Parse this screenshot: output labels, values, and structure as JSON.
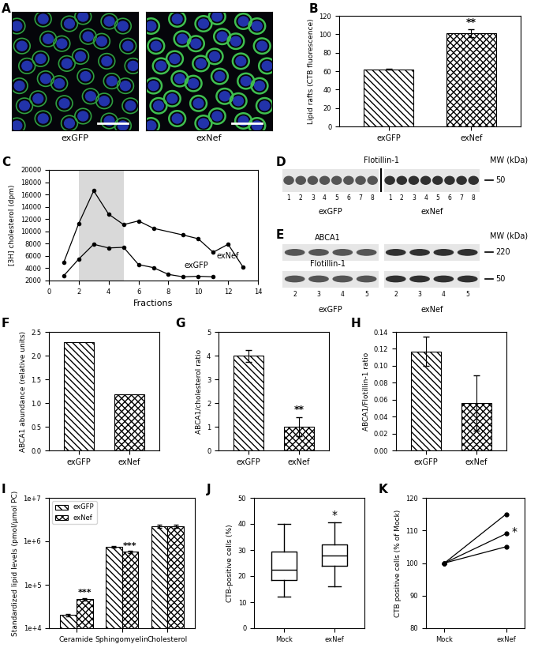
{
  "chart_data": [
    {
      "type": "image",
      "title": "A",
      "groups": [
        "exGFP",
        "exNef"
      ]
    },
    {
      "type": "bar",
      "title": "B",
      "categories": [
        "exGFP",
        "exNef"
      ],
      "values": [
        62,
        101
      ],
      "errors": [
        0.5,
        4
      ],
      "colors": [
        "#ffffff",
        "#ffffff"
      ],
      "ylabel": "Lipid rafts (CTB fluorescence)",
      "ylim": [
        0,
        120
      ],
      "yticks": [
        0,
        20,
        40,
        60,
        80,
        100,
        120
      ],
      "annotations": [
        {
          "text": "**",
          "x": "exNef"
        }
      ]
    },
    {
      "type": "line",
      "title": "C",
      "xlabel": "Fractions",
      "ylabel": "[3H] cholesterol (dpm)",
      "xlim": [
        0,
        14
      ],
      "xticks": [
        0,
        2,
        4,
        6,
        8,
        10,
        12,
        14
      ],
      "ylim": [
        2000,
        20000
      ],
      "yticks": [
        2000,
        4000,
        6000,
        8000,
        10000,
        12000,
        14000,
        16000,
        18000,
        20000
      ],
      "highlight": [
        2,
        5
      ],
      "marker": "o",
      "series": [
        {
          "name": "exNef",
          "color": "#000000",
          "x": [
            1,
            2,
            3,
            4,
            5,
            6,
            7,
            9,
            10,
            11,
            12,
            13
          ],
          "values": [
            5000,
            11300,
            16600,
            12800,
            11100,
            11700,
            10500,
            9400,
            8800,
            6600,
            7900,
            4200
          ]
        },
        {
          "name": "exGFP",
          "color": "#000000",
          "x": [
            1,
            2,
            3,
            4,
            5,
            6,
            7,
            8,
            9,
            10,
            11
          ],
          "values": [
            2800,
            5500,
            7900,
            7300,
            7400,
            4600,
            4100,
            3000,
            2600,
            2700,
            2600
          ]
        }
      ]
    },
    {
      "type": "blot",
      "title": "D",
      "bands": [
        "Flotillin-1"
      ],
      "header": "MW (kDa)",
      "mw": [
        50
      ],
      "lanes": [
        1,
        2,
        3,
        4,
        5,
        6,
        7,
        8
      ],
      "groups": [
        "exGFP",
        "exNef"
      ]
    },
    {
      "type": "blot",
      "title": "E",
      "bands": [
        "ABCA1",
        "Flotillin-1"
      ],
      "header": "MW (kDa)",
      "mw": [
        220,
        50
      ],
      "lanes": [
        2,
        3,
        4,
        5
      ],
      "groups": [
        "exGFP",
        "exNef"
      ]
    },
    {
      "type": "bar",
      "title": "F",
      "categories": [
        "exGFP",
        "exNef"
      ],
      "values": [
        2.28,
        1.18
      ],
      "errors": [
        0,
        0
      ],
      "colors": [
        "#ffffff",
        "#ffffff"
      ],
      "ylabel": "ABCA1 abundance (relative units)",
      "ylim": [
        0,
        2.5
      ],
      "yticks": [
        0.0,
        0.5,
        1.0,
        1.5,
        2.0,
        2.5
      ],
      "annotations": []
    },
    {
      "type": "bar",
      "title": "G",
      "categories": [
        "exGFP",
        "exNef"
      ],
      "values": [
        4.0,
        1.0
      ],
      "errors": [
        0.25,
        0.4
      ],
      "colors": [
        "#ffffff",
        "#ffffff"
      ],
      "ylabel": "ABCA1/cholesterol ratio",
      "ylim": [
        0,
        5
      ],
      "yticks": [
        0,
        1,
        2,
        3,
        4,
        5
      ],
      "annotations": [
        {
          "text": "**",
          "x": "exNef"
        }
      ]
    },
    {
      "type": "bar",
      "title": "H",
      "categories": [
        "exGFP",
        "exNef"
      ],
      "values": [
        0.117,
        0.056
      ],
      "errors": [
        0.017,
        0.033
      ],
      "colors": [
        "#ffffff",
        "#ffffff"
      ],
      "ylabel": "ABCA1/Flotillin-1 ratio",
      "ylim": [
        0,
        0.14
      ],
      "yticks": [
        {
          "value": 0,
          "label": "0.00"
        },
        {
          "value": 0.02,
          "label": "0.02"
        },
        {
          "value": 0.04,
          "label": "0.04"
        },
        {
          "value": 0.06,
          "label": "0.06"
        },
        {
          "value": 0.08,
          "label": "0.08"
        },
        {
          "value": 0.1,
          "label": "0.10"
        },
        {
          "value": 0.12,
          "label": "0.12"
        },
        {
          "value": 0.14,
          "label": "0.14"
        }
      ],
      "annotations": []
    },
    {
      "type": "bar",
      "title": "I",
      "log": "y",
      "legend": "upper left",
      "categories": [
        "Ceramide",
        "Sphingomyelin",
        "Cholesterol"
      ],
      "ylabel": "Standardized lipid levels (pmol/µmol PC)",
      "ylim": [
        10000,
        10000000
      ],
      "yticks": [
        {
          "value": 10000,
          "label": "1e+4"
        },
        {
          "value": 100000,
          "label": "1e+5"
        },
        {
          "value": 1000000,
          "label": "1e+6"
        },
        {
          "value": 10000000,
          "label": "1e+7"
        }
      ],
      "series": [
        {
          "name": "exGFP",
          "color": "#ffffff",
          "values": [
            20000,
            750000,
            2200000
          ],
          "errors": [
            1500,
            20000,
            200000
          ]
        },
        {
          "name": "exNef",
          "color": "#ffffff",
          "values": [
            47000,
            570000,
            2200000
          ],
          "errors": [
            3000,
            30000,
            200000
          ]
        }
      ],
      "annotations": [
        {
          "text": "***",
          "x": "Ceramide",
          "series": "exNef"
        },
        {
          "text": "***",
          "x": "Sphingomyelin",
          "series": "exNef"
        }
      ]
    },
    {
      "type": "box",
      "title": "J",
      "categories": [
        "Mock",
        "exNef"
      ],
      "ylabel": "CTB-positive cells (%)",
      "ylim": [
        0,
        50
      ],
      "yticks": [
        0,
        10,
        20,
        30,
        40,
        50
      ],
      "boxes": [
        {
          "whislo": 12,
          "q1": 18.5,
          "med": 22.5,
          "q3": 29.5,
          "whishi": 40
        },
        {
          "whislo": 16,
          "q1": 24,
          "med": 28,
          "q3": 32,
          "whishi": 40.5
        }
      ],
      "annotations": [
        {
          "text": "*",
          "x": "exNef"
        }
      ]
    },
    {
      "type": "line",
      "title": "K",
      "categories": [
        "Mock",
        "exNef"
      ],
      "ylabel": "CTB positive cells (% of Mock)",
      "ylim": [
        80,
        120
      ],
      "yticks": [
        80,
        90,
        100,
        110,
        120
      ],
      "marker": "o",
      "series": [
        {
          "color": "#000000",
          "values": [
            100,
            115
          ]
        },
        {
          "color": "#000000",
          "values": [
            100,
            109
          ]
        },
        {
          "color": "#000000",
          "values": [
            100,
            105
          ]
        }
      ],
      "annotations": [
        {
          "text": "*",
          "x": "exNef"
        }
      ]
    }
  ]
}
